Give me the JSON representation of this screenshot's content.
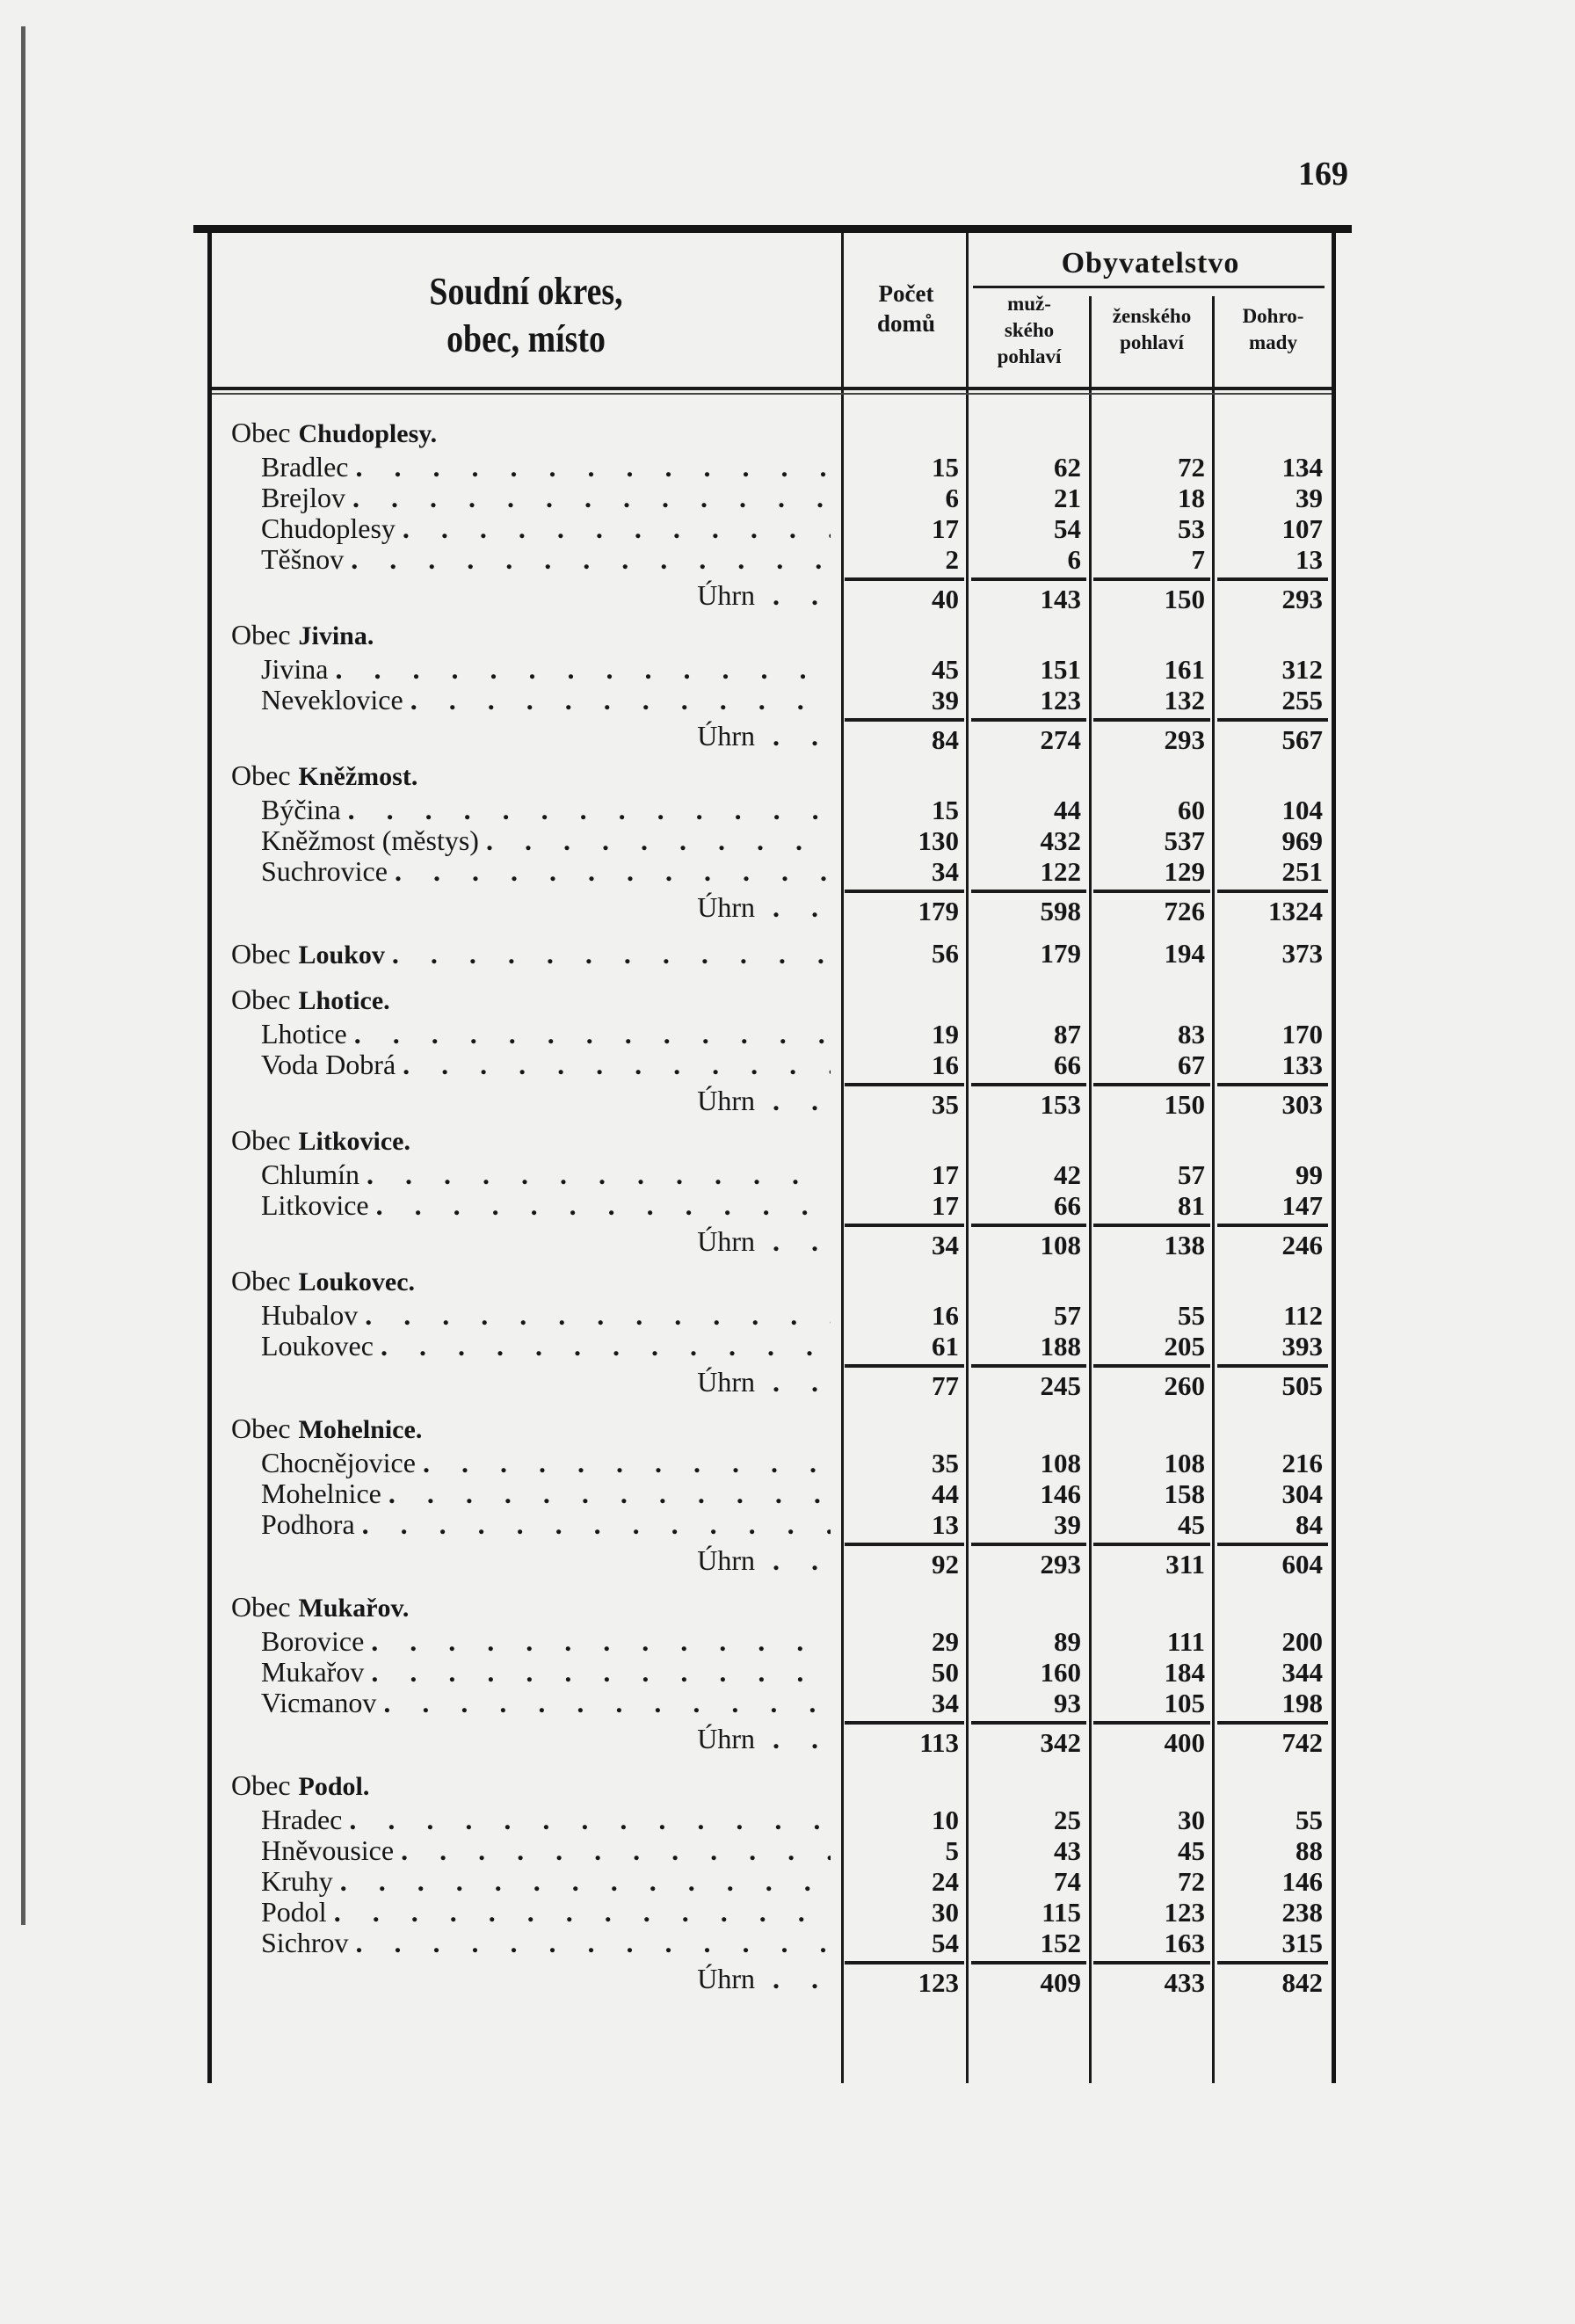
{
  "page_number": "169",
  "header": {
    "name_col": [
      "Soudní okres,",
      "obec, místo"
    ],
    "houses_col": [
      "Počet",
      "domů"
    ],
    "population_group": "Obyvatelstvo",
    "male_col": [
      "muž-",
      "ského",
      "pohlaví"
    ],
    "female_col": [
      "ženského",
      "pohlaví"
    ],
    "total_col": [
      "Dohro-",
      "mady"
    ]
  },
  "sum_label": "Úhrn",
  "groups": [
    {
      "prefix": "Obec",
      "name": "Chudoplesy.",
      "rows": [
        {
          "name": "Bradlec",
          "domy": "15",
          "muz": "62",
          "zen": "72",
          "celkem": "134"
        },
        {
          "name": "Brejlov",
          "domy": "6",
          "muz": "21",
          "zen": "18",
          "celkem": "39"
        },
        {
          "name": "Chudoplesy",
          "domy": "17",
          "muz": "54",
          "zen": "53",
          "celkem": "107"
        },
        {
          "name": "Těšnov",
          "domy": "2",
          "muz": "6",
          "zen": "7",
          "celkem": "13"
        }
      ],
      "sum": {
        "domy": "40",
        "muz": "143",
        "zen": "150",
        "celkem": "293"
      }
    },
    {
      "prefix": "Obec",
      "name": "Jivina.",
      "rows": [
        {
          "name": "Jivina",
          "domy": "45",
          "muz": "151",
          "zen": "161",
          "celkem": "312"
        },
        {
          "name": "Neveklovice",
          "domy": "39",
          "muz": "123",
          "zen": "132",
          "celkem": "255"
        }
      ],
      "sum": {
        "domy": "84",
        "muz": "274",
        "zen": "293",
        "celkem": "567"
      }
    },
    {
      "prefix": "Obec",
      "name": "Kněžmost.",
      "rows": [
        {
          "name": "Býčina",
          "domy": "15",
          "muz": "44",
          "zen": "60",
          "celkem": "104"
        },
        {
          "name": "Kněžmost (městys)",
          "domy": "130",
          "muz": "432",
          "zen": "537",
          "celkem": "969"
        },
        {
          "name": "Suchrovice",
          "domy": "34",
          "muz": "122",
          "zen": "129",
          "celkem": "251"
        }
      ],
      "sum": {
        "domy": "179",
        "muz": "598",
        "zen": "726",
        "celkem": "1324"
      }
    },
    {
      "prefix": "Obec",
      "name": "Loukov",
      "single": {
        "domy": "56",
        "muz": "179",
        "zen": "194",
        "celkem": "373"
      }
    },
    {
      "prefix": "Obec",
      "name": "Lhotice.",
      "rows": [
        {
          "name": "Lhotice",
          "domy": "19",
          "muz": "87",
          "zen": "83",
          "celkem": "170"
        },
        {
          "name": "Voda Dobrá",
          "domy": "16",
          "muz": "66",
          "zen": "67",
          "celkem": "133"
        }
      ],
      "sum": {
        "domy": "35",
        "muz": "153",
        "zen": "150",
        "celkem": "303"
      }
    },
    {
      "prefix": "Obec",
      "name": "Litkovice.",
      "rows": [
        {
          "name": "Chlumín",
          "domy": "17",
          "muz": "42",
          "zen": "57",
          "celkem": "99"
        },
        {
          "name": "Litkovice",
          "domy": "17",
          "muz": "66",
          "zen": "81",
          "celkem": "147"
        }
      ],
      "sum": {
        "domy": "34",
        "muz": "108",
        "zen": "138",
        "celkem": "246"
      }
    },
    {
      "prefix": "Obec",
      "name": "Loukovec.",
      "rows": [
        {
          "name": "Hubalov",
          "domy": "16",
          "muz": "57",
          "zen": "55",
          "celkem": "112"
        },
        {
          "name": "Loukovec",
          "domy": "61",
          "muz": "188",
          "zen": "205",
          "celkem": "393"
        }
      ],
      "sum": {
        "domy": "77",
        "muz": "245",
        "zen": "260",
        "celkem": "505"
      }
    },
    {
      "prefix": "Obec",
      "name": "Mohelnice.",
      "rows": [
        {
          "name": "Chocnějovice",
          "domy": "35",
          "muz": "108",
          "zen": "108",
          "celkem": "216"
        },
        {
          "name": "Mohelnice",
          "domy": "44",
          "muz": "146",
          "zen": "158",
          "celkem": "304"
        },
        {
          "name": "Podhora",
          "domy": "13",
          "muz": "39",
          "zen": "45",
          "celkem": "84"
        }
      ],
      "sum": {
        "domy": "92",
        "muz": "293",
        "zen": "311",
        "celkem": "604"
      }
    },
    {
      "prefix": "Obec",
      "name": "Mukařov.",
      "rows": [
        {
          "name": "Borovice",
          "domy": "29",
          "muz": "89",
          "zen": "111",
          "celkem": "200"
        },
        {
          "name": "Mukařov",
          "domy": "50",
          "muz": "160",
          "zen": "184",
          "celkem": "344"
        },
        {
          "name": "Vicmanov",
          "domy": "34",
          "muz": "93",
          "zen": "105",
          "celkem": "198"
        }
      ],
      "sum": {
        "domy": "113",
        "muz": "342",
        "zen": "400",
        "celkem": "742"
      }
    },
    {
      "prefix": "Obec",
      "name": "Podol.",
      "rows": [
        {
          "name": "Hradec",
          "domy": "10",
          "muz": "25",
          "zen": "30",
          "celkem": "55"
        },
        {
          "name": "Hněvousice",
          "domy": "5",
          "muz": "43",
          "zen": "45",
          "celkem": "88"
        },
        {
          "name": "Kruhy",
          "domy": "24",
          "muz": "74",
          "zen": "72",
          "celkem": "146"
        },
        {
          "name": "Podol",
          "domy": "30",
          "muz": "115",
          "zen": "123",
          "celkem": "238"
        },
        {
          "name": "Sichrov",
          "domy": "54",
          "muz": "152",
          "zen": "163",
          "celkem": "315"
        }
      ],
      "sum": {
        "domy": "123",
        "muz": "409",
        "zen": "433",
        "celkem": "842"
      }
    }
  ]
}
